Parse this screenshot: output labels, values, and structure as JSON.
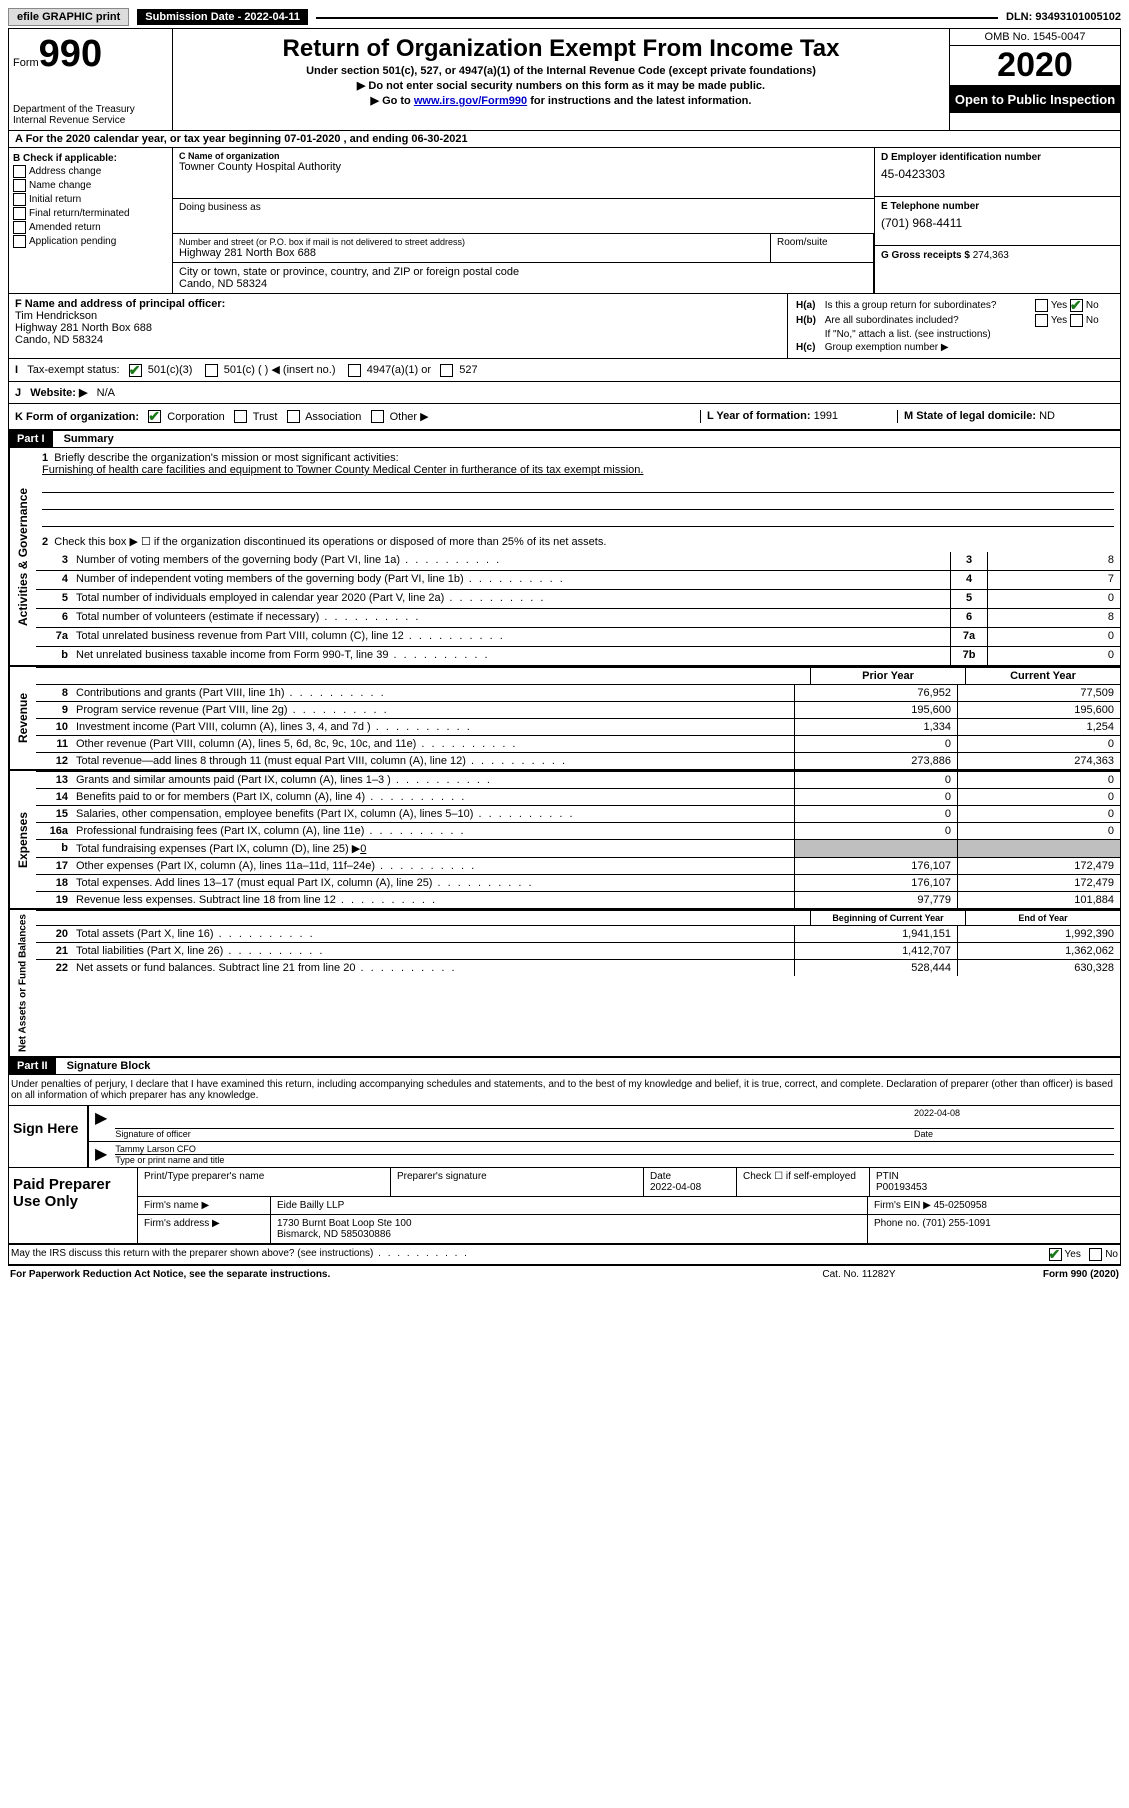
{
  "topbar": {
    "efile": "efile GRAPHIC print",
    "submission_label": "Submission Date - 2022-04-11",
    "dln": "DLN: 93493101005102"
  },
  "header": {
    "form_label": "Form",
    "form_number": "990",
    "dept": "Department of the Treasury",
    "irs": "Internal Revenue Service",
    "title": "Return of Organization Exempt From Income Tax",
    "subtitle": "Under section 501(c), 527, or 4947(a)(1) of the Internal Revenue Code (except private foundations)",
    "ssn_line": "▶ Do not enter social security numbers on this form as it may be made public.",
    "goto_prefix": "▶ Go to ",
    "goto_link": "www.irs.gov/Form990",
    "goto_suffix": " for instructions and the latest information.",
    "omb": "OMB No. 1545-0047",
    "year": "2020",
    "public": "Open to Public Inspection"
  },
  "section_a": "A   For the 2020 calendar year, or tax year beginning 07-01-2020   , and ending 06-30-2021",
  "section_b": {
    "label": "B Check if applicable:",
    "items": [
      "Address change",
      "Name change",
      "Initial return",
      "Final return/terminated",
      "Amended return",
      "Application pending"
    ]
  },
  "section_c": {
    "name_lbl": "C Name of organization",
    "name": "Towner County Hospital Authority",
    "dba_lbl": "Doing business as",
    "street_lbl": "Number and street (or P.O. box if mail is not delivered to street address)",
    "suite_lbl": "Room/suite",
    "street": "Highway 281 North Box 688",
    "city_lbl": "City or town, state or province, country, and ZIP or foreign postal code",
    "city": "Cando, ND  58324"
  },
  "section_d": {
    "lbl": "D Employer identification number",
    "val": "45-0423303"
  },
  "section_e": {
    "lbl": "E Telephone number",
    "val": "(701) 968-4411"
  },
  "section_g": {
    "lbl": "G Gross receipts $",
    "val": "274,363"
  },
  "section_f": {
    "lbl": "F  Name and address of principal officer:",
    "name": "Tim Hendrickson",
    "addr1": "Highway 281 North Box 688",
    "addr2": "Cando, ND  58324"
  },
  "section_h": {
    "h_a_lbl": "H(a)",
    "h_a_txt": "Is this a group return for subordinates?",
    "h_b_lbl": "H(b)",
    "h_b_txt": "Are all subordinates included?",
    "h_b_note": "If \"No,\" attach a list. (see instructions)",
    "h_c_lbl": "H(c)",
    "h_c_txt": "Group exemption number ▶",
    "yes": "Yes",
    "no": "No"
  },
  "section_i": {
    "lbl": "I",
    "txt": "Tax-exempt status:",
    "opt1": "501(c)(3)",
    "opt2": "501(c) (   ) ◀ (insert no.)",
    "opt3": "4947(a)(1) or",
    "opt4": "527"
  },
  "section_j": {
    "lbl": "J",
    "txt": "Website: ▶",
    "val": "N/A"
  },
  "section_k": {
    "lbl": "K Form of organization:",
    "opts": [
      "Corporation",
      "Trust",
      "Association",
      "Other ▶"
    ],
    "l_lbl": "L Year of formation:",
    "l_val": "1991",
    "m_lbl": "M State of legal domicile:",
    "m_val": "ND"
  },
  "parts": {
    "part1": "Part I",
    "part1_title": "Summary",
    "part2": "Part II",
    "part2_title": "Signature Block"
  },
  "vert": {
    "gov": "Activities & Governance",
    "rev": "Revenue",
    "exp": "Expenses",
    "net": "Net Assets or Fund Balances"
  },
  "line1_lbl": "Briefly describe the organization's mission or most significant activities:",
  "line1_val": "Furnishing of health care facilities and equipment to Towner County Medical Center in furtherance of its tax exempt mission.",
  "line2": "Check this box ▶ ☐  if the organization discontinued its operations or disposed of more than 25% of its net assets.",
  "gov_lines": [
    {
      "n": "3",
      "d": "Number of voting members of the governing body (Part VI, line 1a)",
      "b": "3",
      "v": "8"
    },
    {
      "n": "4",
      "d": "Number of independent voting members of the governing body (Part VI, line 1b)",
      "b": "4",
      "v": "7"
    },
    {
      "n": "5",
      "d": "Total number of individuals employed in calendar year 2020 (Part V, line 2a)",
      "b": "5",
      "v": "0"
    },
    {
      "n": "6",
      "d": "Total number of volunteers (estimate if necessary)",
      "b": "6",
      "v": "8"
    },
    {
      "n": "7a",
      "d": "Total unrelated business revenue from Part VIII, column (C), line 12",
      "b": "7a",
      "v": "0"
    },
    {
      "n": "b",
      "d": "Net unrelated business taxable income from Form 990-T, line 39",
      "b": "7b",
      "v": "0"
    }
  ],
  "col_headers": {
    "prior": "Prior Year",
    "current": "Current Year",
    "boy": "Beginning of Current Year",
    "eoy": "End of Year"
  },
  "rev_lines": [
    {
      "n": "8",
      "d": "Contributions and grants (Part VIII, line 1h)",
      "p": "76,952",
      "c": "77,509"
    },
    {
      "n": "9",
      "d": "Program service revenue (Part VIII, line 2g)",
      "p": "195,600",
      "c": "195,600"
    },
    {
      "n": "10",
      "d": "Investment income (Part VIII, column (A), lines 3, 4, and 7d )",
      "p": "1,334",
      "c": "1,254"
    },
    {
      "n": "11",
      "d": "Other revenue (Part VIII, column (A), lines 5, 6d, 8c, 9c, 10c, and 11e)",
      "p": "0",
      "c": "0"
    },
    {
      "n": "12",
      "d": "Total revenue—add lines 8 through 11 (must equal Part VIII, column (A), line 12)",
      "p": "273,886",
      "c": "274,363"
    }
  ],
  "exp_lines": [
    {
      "n": "13",
      "d": "Grants and similar amounts paid (Part IX, column (A), lines 1–3 )",
      "p": "0",
      "c": "0"
    },
    {
      "n": "14",
      "d": "Benefits paid to or for members (Part IX, column (A), line 4)",
      "p": "0",
      "c": "0"
    },
    {
      "n": "15",
      "d": "Salaries, other compensation, employee benefits (Part IX, column (A), lines 5–10)",
      "p": "0",
      "c": "0"
    },
    {
      "n": "16a",
      "d": "Professional fundraising fees (Part IX, column (A), line 11e)",
      "p": "0",
      "c": "0"
    }
  ],
  "exp_16b": {
    "n": "b",
    "d": "Total fundraising expenses (Part IX, column (D), line 25) ▶",
    "v": "0"
  },
  "exp_lines2": [
    {
      "n": "17",
      "d": "Other expenses (Part IX, column (A), lines 11a–11d, 11f–24e)",
      "p": "176,107",
      "c": "172,479"
    },
    {
      "n": "18",
      "d": "Total expenses. Add lines 13–17 (must equal Part IX, column (A), line 25)",
      "p": "176,107",
      "c": "172,479"
    },
    {
      "n": "19",
      "d": "Revenue less expenses. Subtract line 18 from line 12",
      "p": "97,779",
      "c": "101,884"
    }
  ],
  "net_lines": [
    {
      "n": "20",
      "d": "Total assets (Part X, line 16)",
      "p": "1,941,151",
      "c": "1,992,390"
    },
    {
      "n": "21",
      "d": "Total liabilities (Part X, line 26)",
      "p": "1,412,707",
      "c": "1,362,062"
    },
    {
      "n": "22",
      "d": "Net assets or fund balances. Subtract line 21 from line 20",
      "p": "528,444",
      "c": "630,328"
    }
  ],
  "penalties": "Under penalties of perjury, I declare that I have examined this return, including accompanying schedules and statements, and to the best of my knowledge and belief, it is true, correct, and complete. Declaration of preparer (other than officer) is based on all information of which preparer has any knowledge.",
  "sign": {
    "here": "Sign Here",
    "sig_lbl": "Signature of officer",
    "date_lbl": "Date",
    "date_val": "2022-04-08",
    "name": "Tammy Larson CFO",
    "name_lbl": "Type or print name and title"
  },
  "paid": {
    "title": "Paid Preparer Use Only",
    "h1": "Print/Type preparer's name",
    "h2": "Preparer's signature",
    "h3": "Date",
    "h3v": "2022-04-08",
    "h4": "Check ☐ if self-employed",
    "h5": "PTIN",
    "h5v": "P00193453",
    "firm_lbl": "Firm's name    ▶",
    "firm": "Eide Bailly LLP",
    "ein_lbl": "Firm's EIN ▶",
    "ein": "45-0250958",
    "addr_lbl": "Firm's address ▶",
    "addr1": "1730 Burnt Boat Loop Ste 100",
    "addr2": "Bismarck, ND  585030886",
    "phone_lbl": "Phone no.",
    "phone": "(701) 255-1091"
  },
  "discuss": {
    "q": "May the IRS discuss this return with the preparer shown above? (see instructions)",
    "yes": "Yes",
    "no": "No"
  },
  "footer": {
    "left": "For Paperwork Reduction Act Notice, see the separate instructions.",
    "mid": "Cat. No. 11282Y",
    "right": "Form 990 (2020)"
  }
}
